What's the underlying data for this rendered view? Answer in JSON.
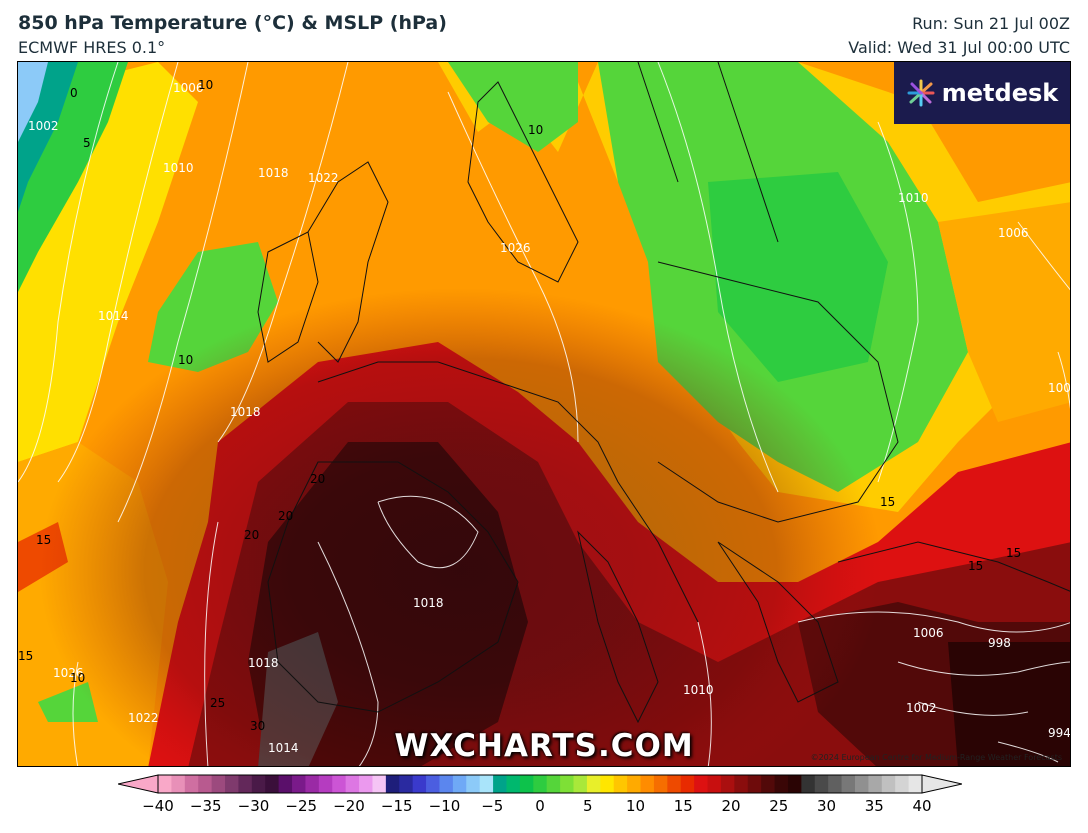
{
  "header": {
    "title": "850 hPa Temperature (°C) & MSLP (hPa)",
    "model": "ECMWF HRES 0.1°",
    "run": "Run: Sun 21 Jul 00Z",
    "valid": "Valid: Wed 31 Jul 00:00 UTC"
  },
  "brand": {
    "name": "metdesk"
  },
  "watermark": "WXCHARTS.COM",
  "credit": "©2024 European Centre for Medium-Range Weather Forecasts",
  "colorbar": {
    "ticks": [
      "−40",
      "−35",
      "−30",
      "−25",
      "−20",
      "−15",
      "−10",
      "−5",
      "0",
      "5",
      "10",
      "15",
      "20",
      "25",
      "30",
      "35",
      "40"
    ],
    "colors": [
      "#f9a8c8",
      "#e890b8",
      "#cf6fa1",
      "#b85a8f",
      "#9c4a7e",
      "#7f3a6d",
      "#63285a",
      "#4a1a48",
      "#3a0f3a",
      "#5a0f6a",
      "#7a1a8a",
      "#9a2aa5",
      "#b53cc0",
      "#cc55d5",
      "#dd77e3",
      "#eb99ee",
      "#f5c4f5",
      "#1e1e7a",
      "#2a2aa0",
      "#3a3acc",
      "#4b5ee0",
      "#5b86ee",
      "#6fa9f6",
      "#8ccaf8",
      "#a9e4fa",
      "#00a38a",
      "#00b86e",
      "#0dc24b",
      "#2ecc40",
      "#55d53a",
      "#7ee036",
      "#a9e83a",
      "#e8ef2a",
      "#ffe600",
      "#ffc600",
      "#ffaa00",
      "#ff8c00",
      "#f66e00",
      "#ee4a00",
      "#e82a00",
      "#dd1111",
      "#c80f0f",
      "#aa0f0f",
      "#8a0d0d",
      "#6e0b0b",
      "#520909",
      "#3a0606",
      "#2a0404",
      "#333333",
      "#4a4a4a",
      "#606060",
      "#787878",
      "#909090",
      "#a8a8a8",
      "#c0c0c0",
      "#d4d4d4",
      "#e6e6e6"
    ]
  },
  "map_labels": {
    "isobars": [
      "1006",
      "1002",
      "1010",
      "1018",
      "1022",
      "1014",
      "1018",
      "1026",
      "1010",
      "1006",
      "1006",
      "1018",
      "1018",
      "1022",
      "1026",
      "1014",
      "1010",
      "1006",
      "998",
      "1002",
      "994"
    ],
    "isotherms": [
      "0",
      "5",
      "10",
      "10",
      "10",
      "10",
      "15",
      "15",
      "15",
      "15",
      "15",
      "20",
      "20",
      "20",
      "25",
      "30"
    ]
  }
}
